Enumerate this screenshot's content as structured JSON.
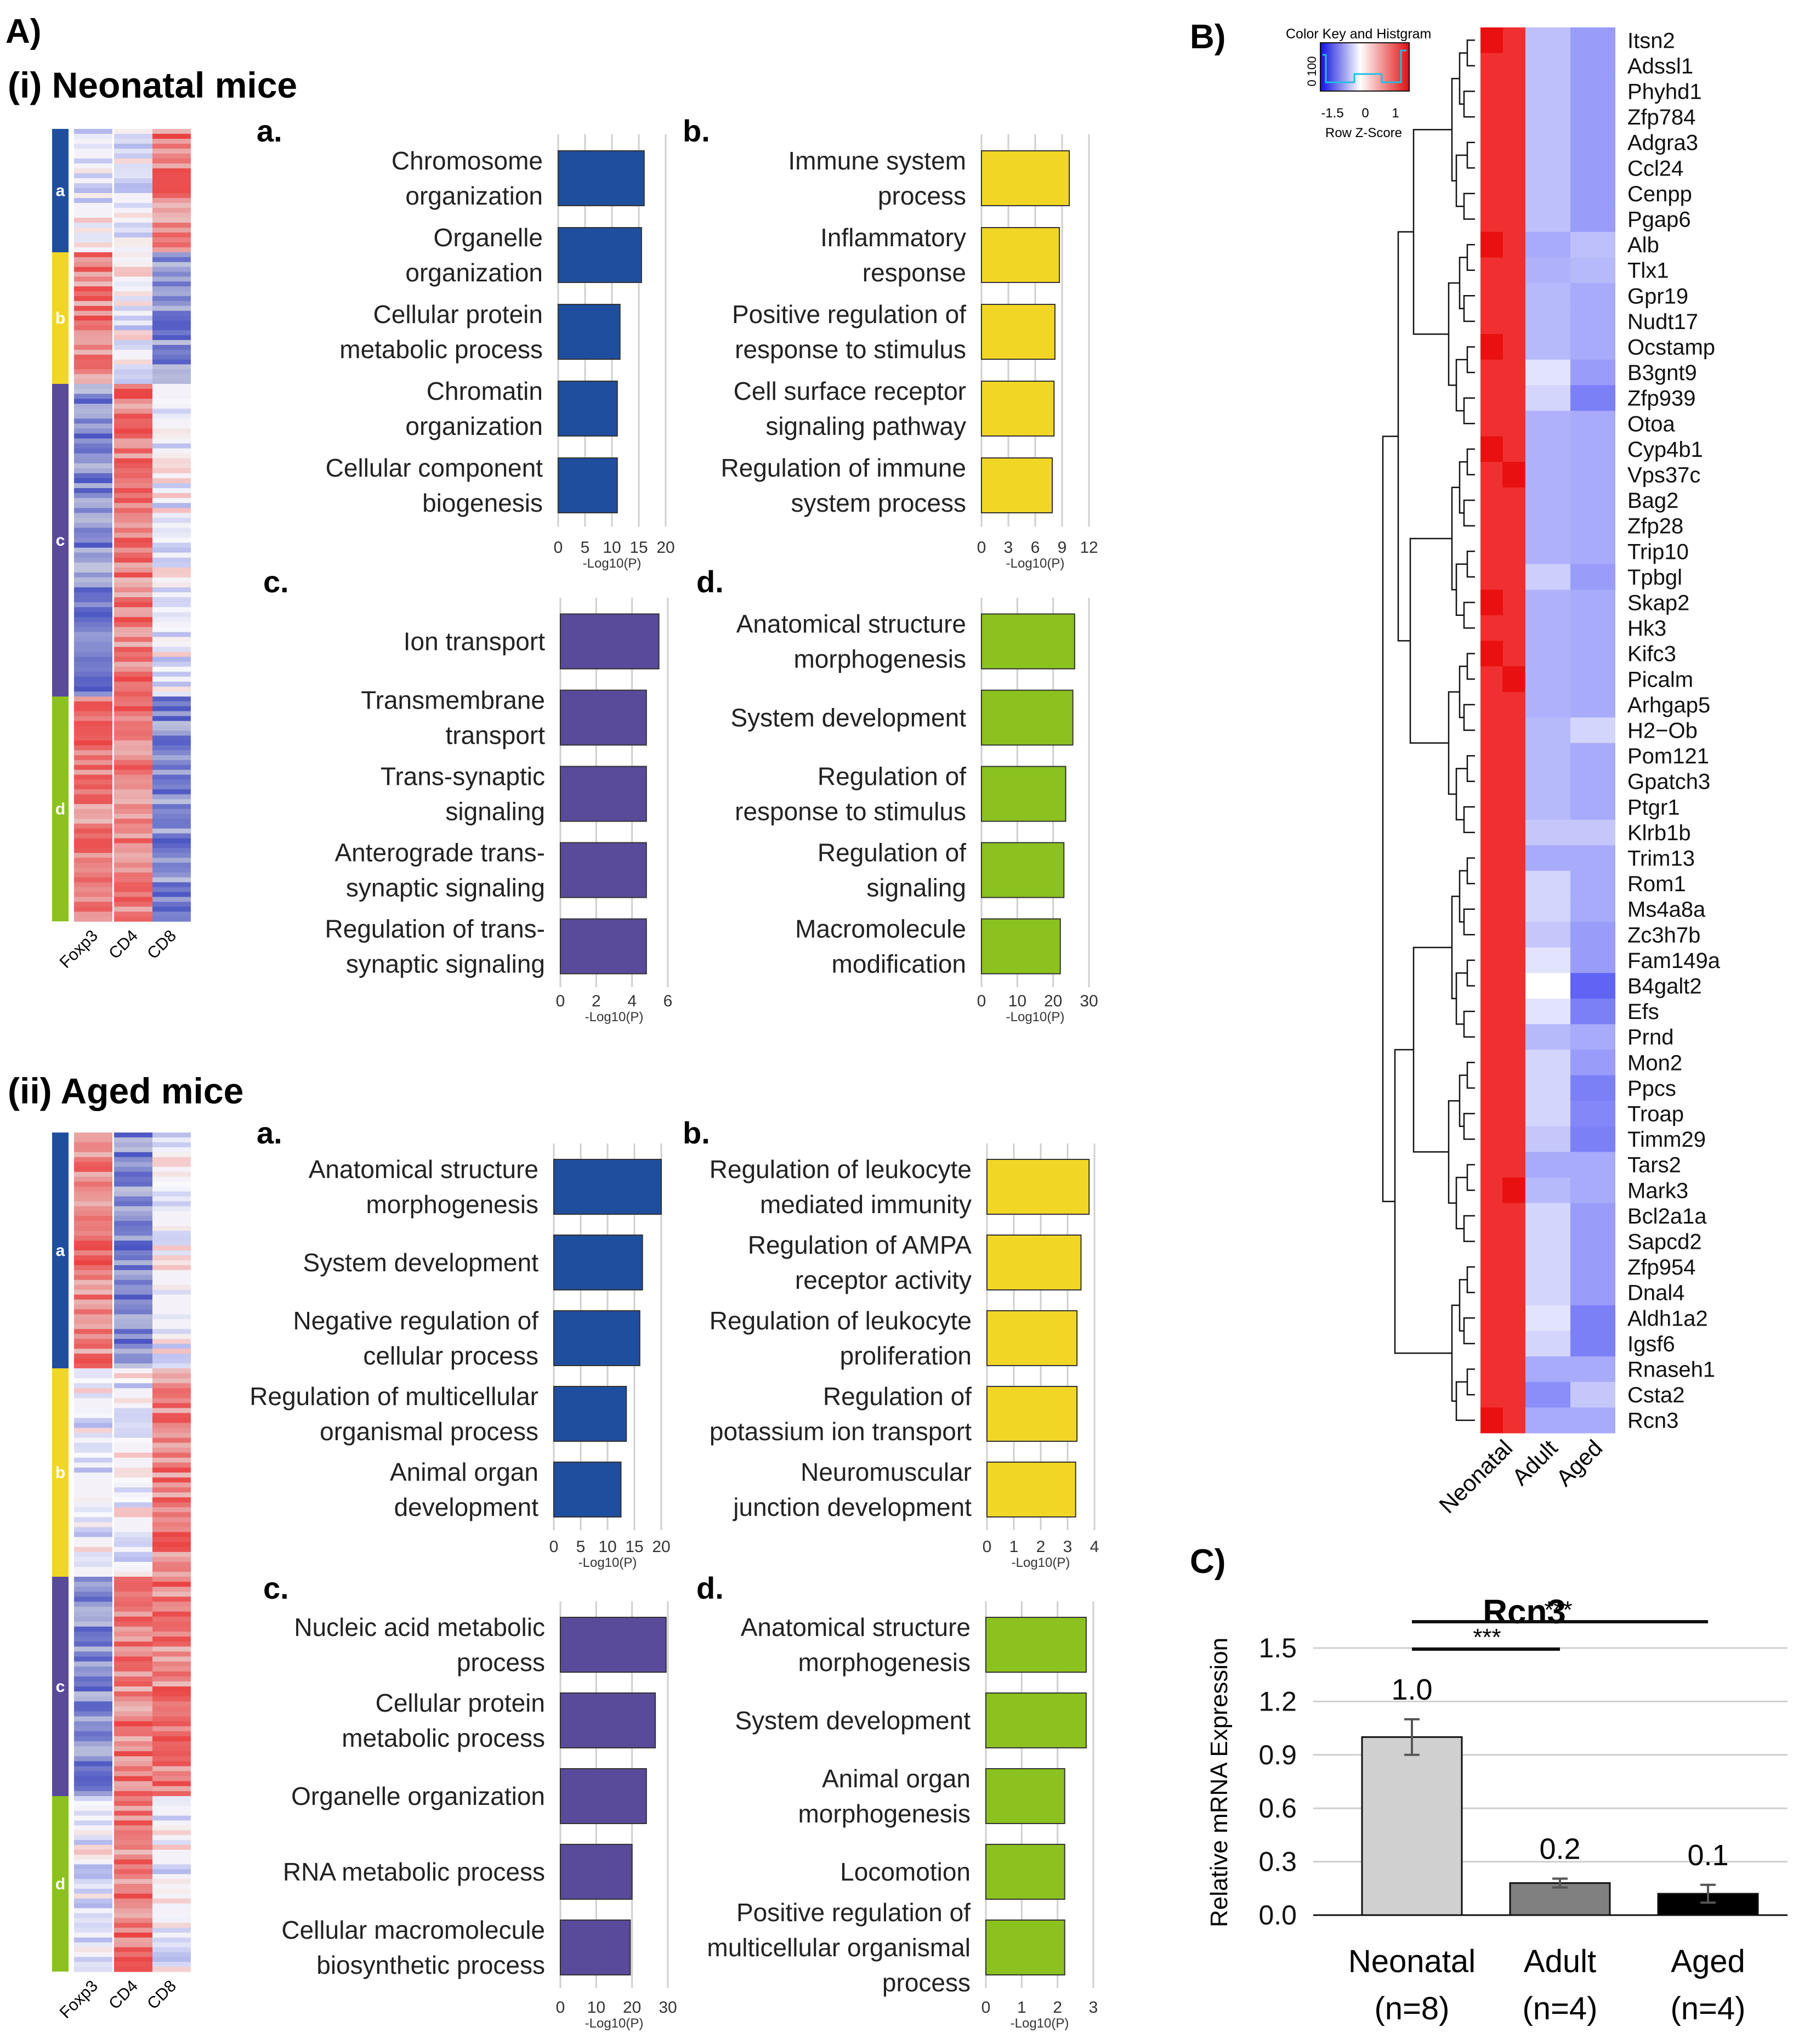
{
  "panel_labels": {
    "A": "A)",
    "B": "B)",
    "C": "C)"
  },
  "section_titles": [
    "(i) Neonatal mice",
    "(ii) Aged mice"
  ],
  "colors": {
    "a": "#1f4e9e",
    "b": "#f2d626",
    "c": "#5a4a9a",
    "d": "#8bc21f",
    "heat_red": "#f03030",
    "heat_blue": "#6a6cf6",
    "bar_neonatal": "#d0d0d0",
    "bar_adult": "#808080",
    "bar_aged": "#000000"
  },
  "heatmaps": [
    {
      "columns": [
        "Foxp3",
        "CD4",
        "CD8"
      ],
      "clusters": [
        {
          "label": "a",
          "pattern": [
            "mix",
            "mix",
            "red"
          ]
        },
        {
          "label": "b",
          "pattern": [
            "red",
            "mix",
            "blue"
          ]
        },
        {
          "label": "c",
          "pattern": [
            "blue",
            "red",
            "mix"
          ]
        },
        {
          "label": "d",
          "pattern": [
            "red",
            "red",
            "blue"
          ]
        }
      ]
    },
    {
      "columns": [
        "Foxp3",
        "CD4",
        "CD8"
      ],
      "clusters": [
        {
          "label": "a",
          "pattern": [
            "red",
            "blue",
            "mix"
          ]
        },
        {
          "label": "b",
          "pattern": [
            "mix",
            "mix",
            "red"
          ]
        },
        {
          "label": "c",
          "pattern": [
            "blue",
            "red",
            "red"
          ]
        },
        {
          "label": "d",
          "pattern": [
            "mix",
            "red",
            "mix"
          ]
        }
      ]
    }
  ],
  "chart_data": [
    {
      "type": "bar",
      "orientation": "horizontal",
      "section": "(i) Neonatal mice",
      "panel": "a.",
      "color_key": "a",
      "categories": [
        [
          "Chromosome",
          "organization"
        ],
        [
          "Organelle",
          "organization"
        ],
        [
          "Cellular protein",
          "metabolic process"
        ],
        [
          "Chromatin",
          "organization"
        ],
        [
          "Cellular component",
          "biogenesis"
        ]
      ],
      "values": [
        16,
        15.5,
        11.5,
        11,
        11
      ],
      "xlabel": "-Log10(P)",
      "xlim": [
        0,
        20
      ],
      "ticks": [
        0,
        5,
        10,
        15,
        20
      ]
    },
    {
      "type": "bar",
      "orientation": "horizontal",
      "section": "(i) Neonatal mice",
      "panel": "b.",
      "color_key": "b",
      "categories": [
        [
          "Immune system",
          "process"
        ],
        [
          "Inflammatory",
          "response"
        ],
        [
          "Positive regulation of",
          "response to stimulus"
        ],
        [
          "Cell surface receptor",
          "signaling pathway"
        ],
        [
          "Regulation of immune",
          "system process"
        ]
      ],
      "values": [
        9.8,
        8.7,
        8.2,
        8.1,
        7.9
      ],
      "xlabel": "-Log10(P)",
      "xlim": [
        0,
        12
      ],
      "ticks": [
        0,
        3,
        6,
        9,
        12
      ]
    },
    {
      "type": "bar",
      "orientation": "horizontal",
      "section": "(i) Neonatal mice",
      "panel": "c.",
      "color_key": "c",
      "categories": [
        [
          "Ion transport"
        ],
        [
          "Transmembrane",
          "transport"
        ],
        [
          "Trans-synaptic",
          "signaling"
        ],
        [
          "Anterograde trans-",
          "synaptic signaling"
        ],
        [
          "Regulation of trans-",
          "synaptic signaling"
        ]
      ],
      "values": [
        5.5,
        4.8,
        4.8,
        4.8,
        4.8
      ],
      "xlabel": "-Log10(P)",
      "xlim": [
        0,
        6
      ],
      "ticks": [
        0,
        2,
        4,
        6
      ]
    },
    {
      "type": "bar",
      "orientation": "horizontal",
      "section": "(i) Neonatal mice",
      "panel": "d.",
      "color_key": "d",
      "categories": [
        [
          "Anatomical structure",
          "morphogenesis"
        ],
        [
          "System development"
        ],
        [
          "Regulation of",
          "response to stimulus"
        ],
        [
          "Regulation of",
          "signaling"
        ],
        [
          "Macromolecule",
          "modification"
        ]
      ],
      "values": [
        26,
        25.5,
        23.5,
        23,
        22
      ],
      "xlabel": "-Log10(P)",
      "xlim": [
        0,
        30
      ],
      "ticks": [
        0,
        10,
        20,
        30
      ]
    },
    {
      "type": "bar",
      "orientation": "horizontal",
      "section": "(ii) Aged mice",
      "panel": "a.",
      "color_key": "a",
      "categories": [
        [
          "Anatomical structure",
          "morphogenesis"
        ],
        [
          "System development"
        ],
        [
          "Negative regulation of",
          "cellular process"
        ],
        [
          "Regulation of multicellular",
          "organismal process"
        ],
        [
          "Animal organ",
          "development"
        ]
      ],
      "values": [
        20,
        16.5,
        16,
        13.5,
        12.5
      ],
      "xlabel": "-Log10(P)",
      "xlim": [
        0,
        20
      ],
      "ticks": [
        0,
        5,
        10,
        15,
        20
      ]
    },
    {
      "type": "bar",
      "orientation": "horizontal",
      "section": "(ii) Aged mice",
      "panel": "b.",
      "color_key": "b",
      "categories": [
        [
          "Regulation of leukocyte",
          "mediated immunity"
        ],
        [
          "Regulation of AMPA",
          "receptor activity"
        ],
        [
          "Regulation of leukocyte",
          "proliferation"
        ],
        [
          "Regulation of",
          "potassium ion transport"
        ],
        [
          "Neuromuscular",
          "junction development"
        ]
      ],
      "values": [
        3.8,
        3.5,
        3.35,
        3.35,
        3.3
      ],
      "xlabel": "-Log10(P)",
      "xlim": [
        0,
        4
      ],
      "ticks": [
        0,
        1,
        2,
        3,
        4
      ]
    },
    {
      "type": "bar",
      "orientation": "horizontal",
      "section": "(ii) Aged mice",
      "panel": "c.",
      "color_key": "c",
      "categories": [
        [
          "Nucleic acid metabolic",
          "process"
        ],
        [
          "Cellular protein",
          "metabolic process"
        ],
        [
          "Organelle organization"
        ],
        [
          "RNA metabolic process"
        ],
        [
          "Cellular macromolecule",
          "biosynthetic process"
        ]
      ],
      "values": [
        29.5,
        26.5,
        24,
        20,
        19.5
      ],
      "xlabel": "-Log10(P)",
      "xlim": [
        0,
        30
      ],
      "ticks": [
        0,
        10,
        20,
        30
      ]
    },
    {
      "type": "bar",
      "orientation": "horizontal",
      "section": "(ii) Aged mice",
      "panel": "d.",
      "color_key": "d",
      "categories": [
        [
          "Anatomical structure",
          "morphogenesis"
        ],
        [
          "System development"
        ],
        [
          "Animal organ",
          "morphogenesis"
        ],
        [
          "Locomotion"
        ],
        [
          "Positive regulation of",
          "multicellular organismal",
          "process"
        ]
      ],
      "values": [
        2.8,
        2.8,
        2.2,
        2.2,
        2.2
      ],
      "xlabel": "-Log10(P)",
      "xlim": [
        0,
        3
      ],
      "ticks": [
        0,
        1,
        2,
        3
      ]
    },
    {
      "type": "heatmap",
      "panel": "B)",
      "title": "Color Key and Histgram",
      "key_ticks": [
        "-1.5",
        "0",
        "1"
      ],
      "key_label": "Row Z-Score",
      "hist_ticks": [
        "0",
        "100"
      ],
      "columns": [
        "Neonatal",
        "Adult",
        "Aged"
      ],
      "genes": [
        "Itsn2",
        "Adssl1",
        "Phyhd1",
        "Zfp784",
        "Adgra3",
        "Ccl24",
        "Cenpp",
        "Pgap6",
        "Alb",
        "Tlx1",
        "Gpr19",
        "Nudt17",
        "Ocstamp",
        "B3gnt9",
        "Zfp939",
        "Otoa",
        "Cyp4b1",
        "Vps37c",
        "Bag2",
        "Zfp28",
        "Trip10",
        "Tpbgl",
        "Skap2",
        "Hk3",
        "Kifc3",
        "Picalm",
        "Arhgap5",
        "H2−Ob",
        "Pom121",
        "Gpatch3",
        "Ptgr1",
        "Klrb1b",
        "Trim13",
        "Rom1",
        "Ms4a8a",
        "Zc3h7b",
        "Fam149a",
        "B4galt2",
        "Efs",
        "Prnd",
        "Mon2",
        "Ppcs",
        "Troap",
        "Timm29",
        "Tars2",
        "Mark3",
        "Bcl2a1a",
        "Sapcd2",
        "Zfp954",
        "Dnal4",
        "Aldh1a2",
        "Igsf6",
        "Rnaseh1",
        "Csta2",
        "Rcn3"
      ],
      "adult_z": [
        -0.45,
        -0.45,
        -0.45,
        -0.45,
        -0.45,
        -0.45,
        -0.45,
        -0.45,
        -0.6,
        -0.55,
        -0.5,
        -0.5,
        -0.5,
        -0.2,
        -0.3,
        -0.55,
        -0.55,
        -0.55,
        -0.55,
        -0.55,
        -0.55,
        -0.35,
        -0.55,
        -0.55,
        -0.55,
        -0.55,
        -0.55,
        -0.5,
        -0.5,
        -0.5,
        -0.5,
        -0.4,
        -0.6,
        -0.3,
        -0.3,
        -0.4,
        -0.2,
        0.0,
        -0.2,
        -0.5,
        -0.3,
        -0.3,
        -0.3,
        -0.4,
        -0.6,
        -0.5,
        -0.3,
        -0.3,
        -0.3,
        -0.3,
        -0.2,
        -0.3,
        -0.6,
        -0.8,
        -0.6
      ],
      "aged_z": [
        -0.7,
        -0.7,
        -0.7,
        -0.7,
        -0.7,
        -0.7,
        -0.7,
        -0.7,
        -0.45,
        -0.5,
        -0.6,
        -0.6,
        -0.6,
        -0.7,
        -0.9,
        -0.6,
        -0.6,
        -0.6,
        -0.6,
        -0.6,
        -0.6,
        -0.7,
        -0.6,
        -0.6,
        -0.6,
        -0.6,
        -0.6,
        -0.3,
        -0.6,
        -0.6,
        -0.6,
        -0.4,
        -0.6,
        -0.6,
        -0.6,
        -0.7,
        -0.7,
        -1.1,
        -0.9,
        -0.6,
        -0.7,
        -0.9,
        -0.85,
        -0.9,
        -0.6,
        -0.6,
        -0.7,
        -0.7,
        -0.7,
        -0.7,
        -0.9,
        -0.9,
        -0.6,
        -0.4,
        -0.6
      ]
    },
    {
      "type": "bar",
      "panel": "C)",
      "title": "Rcn3",
      "categories": [
        "Neonatal",
        "Adult",
        "Aged"
      ],
      "n_labels": [
        "(n=8)",
        "(n=4)",
        "(n=4)"
      ],
      "values": [
        1.0,
        0.18,
        0.12
      ],
      "errors": [
        0.1,
        0.025,
        0.05
      ],
      "data_labels": [
        "1.0",
        "0.2",
        "0.1"
      ],
      "ylabel": "Relative mRNA Expression",
      "ylim": [
        0,
        1.5
      ],
      "yticks": [
        "0.0",
        "0.3",
        "0.6",
        "0.9",
        "1.2",
        "1.5"
      ],
      "significance": [
        {
          "pair": [
            "Neonatal",
            "Adult"
          ],
          "label": "***"
        },
        {
          "pair": [
            "Neonatal",
            "Aged"
          ],
          "label": "***"
        }
      ]
    }
  ]
}
